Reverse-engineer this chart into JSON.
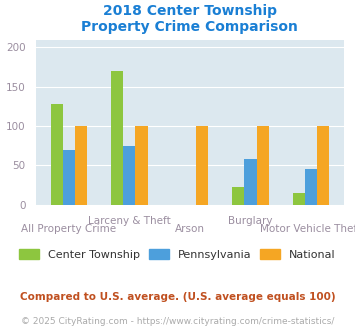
{
  "title": "2018 Center Township\nProperty Crime Comparison",
  "categories": [
    "All Property Crime",
    "Larceny & Theft",
    "Arson",
    "Burglary",
    "Motor Vehicle Theft"
  ],
  "series": {
    "Center Township": [
      128,
      170,
      0,
      22,
      15
    ],
    "Pennsylvania": [
      70,
      75,
      0,
      58,
      45
    ],
    "National": [
      100,
      100,
      100,
      100,
      100
    ]
  },
  "colors": {
    "Center Township": "#8dc63f",
    "Pennsylvania": "#4d9fdc",
    "National": "#f5a623"
  },
  "ylim": [
    0,
    210
  ],
  "yticks": [
    0,
    50,
    100,
    150,
    200
  ],
  "title_color": "#1a7fd4",
  "title_fontsize": 10,
  "tick_color": "#9b8ea0",
  "tick_fontsize": 7.5,
  "legend_fontsize": 8,
  "footer_text": "Compared to U.S. average. (U.S. average equals 100)",
  "footer2_text": "© 2025 CityRating.com - https://www.cityrating.com/crime-statistics/",
  "footer_color": "#c05020",
  "footer2_color": "#aaaaaa",
  "footer_fontsize": 7.5,
  "footer2_fontsize": 6.5,
  "plot_bg": "#dce8ef",
  "bar_width": 0.2
}
